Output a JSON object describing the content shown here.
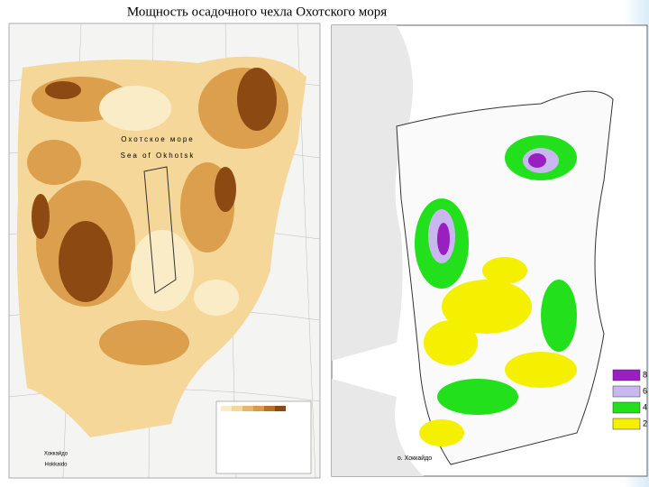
{
  "title": "Мощность осадочного чехла Охотского моря",
  "left_map": {
    "labels": [
      "Охотское море",
      "Sea of Okhotsk",
      "Хоккайдо",
      "Hokkaido"
    ]
  },
  "right_map": {
    "labels": [
      "о. Хоккайдо"
    ],
    "legend": [
      {
        "label": "8",
        "color": "#9a1fc0"
      },
      {
        "label": "6",
        "color": "#c9b8ef"
      },
      {
        "label": "4",
        "color": "#22e01c"
      },
      {
        "label": "2",
        "color": "#f4f000"
      }
    ]
  }
}
